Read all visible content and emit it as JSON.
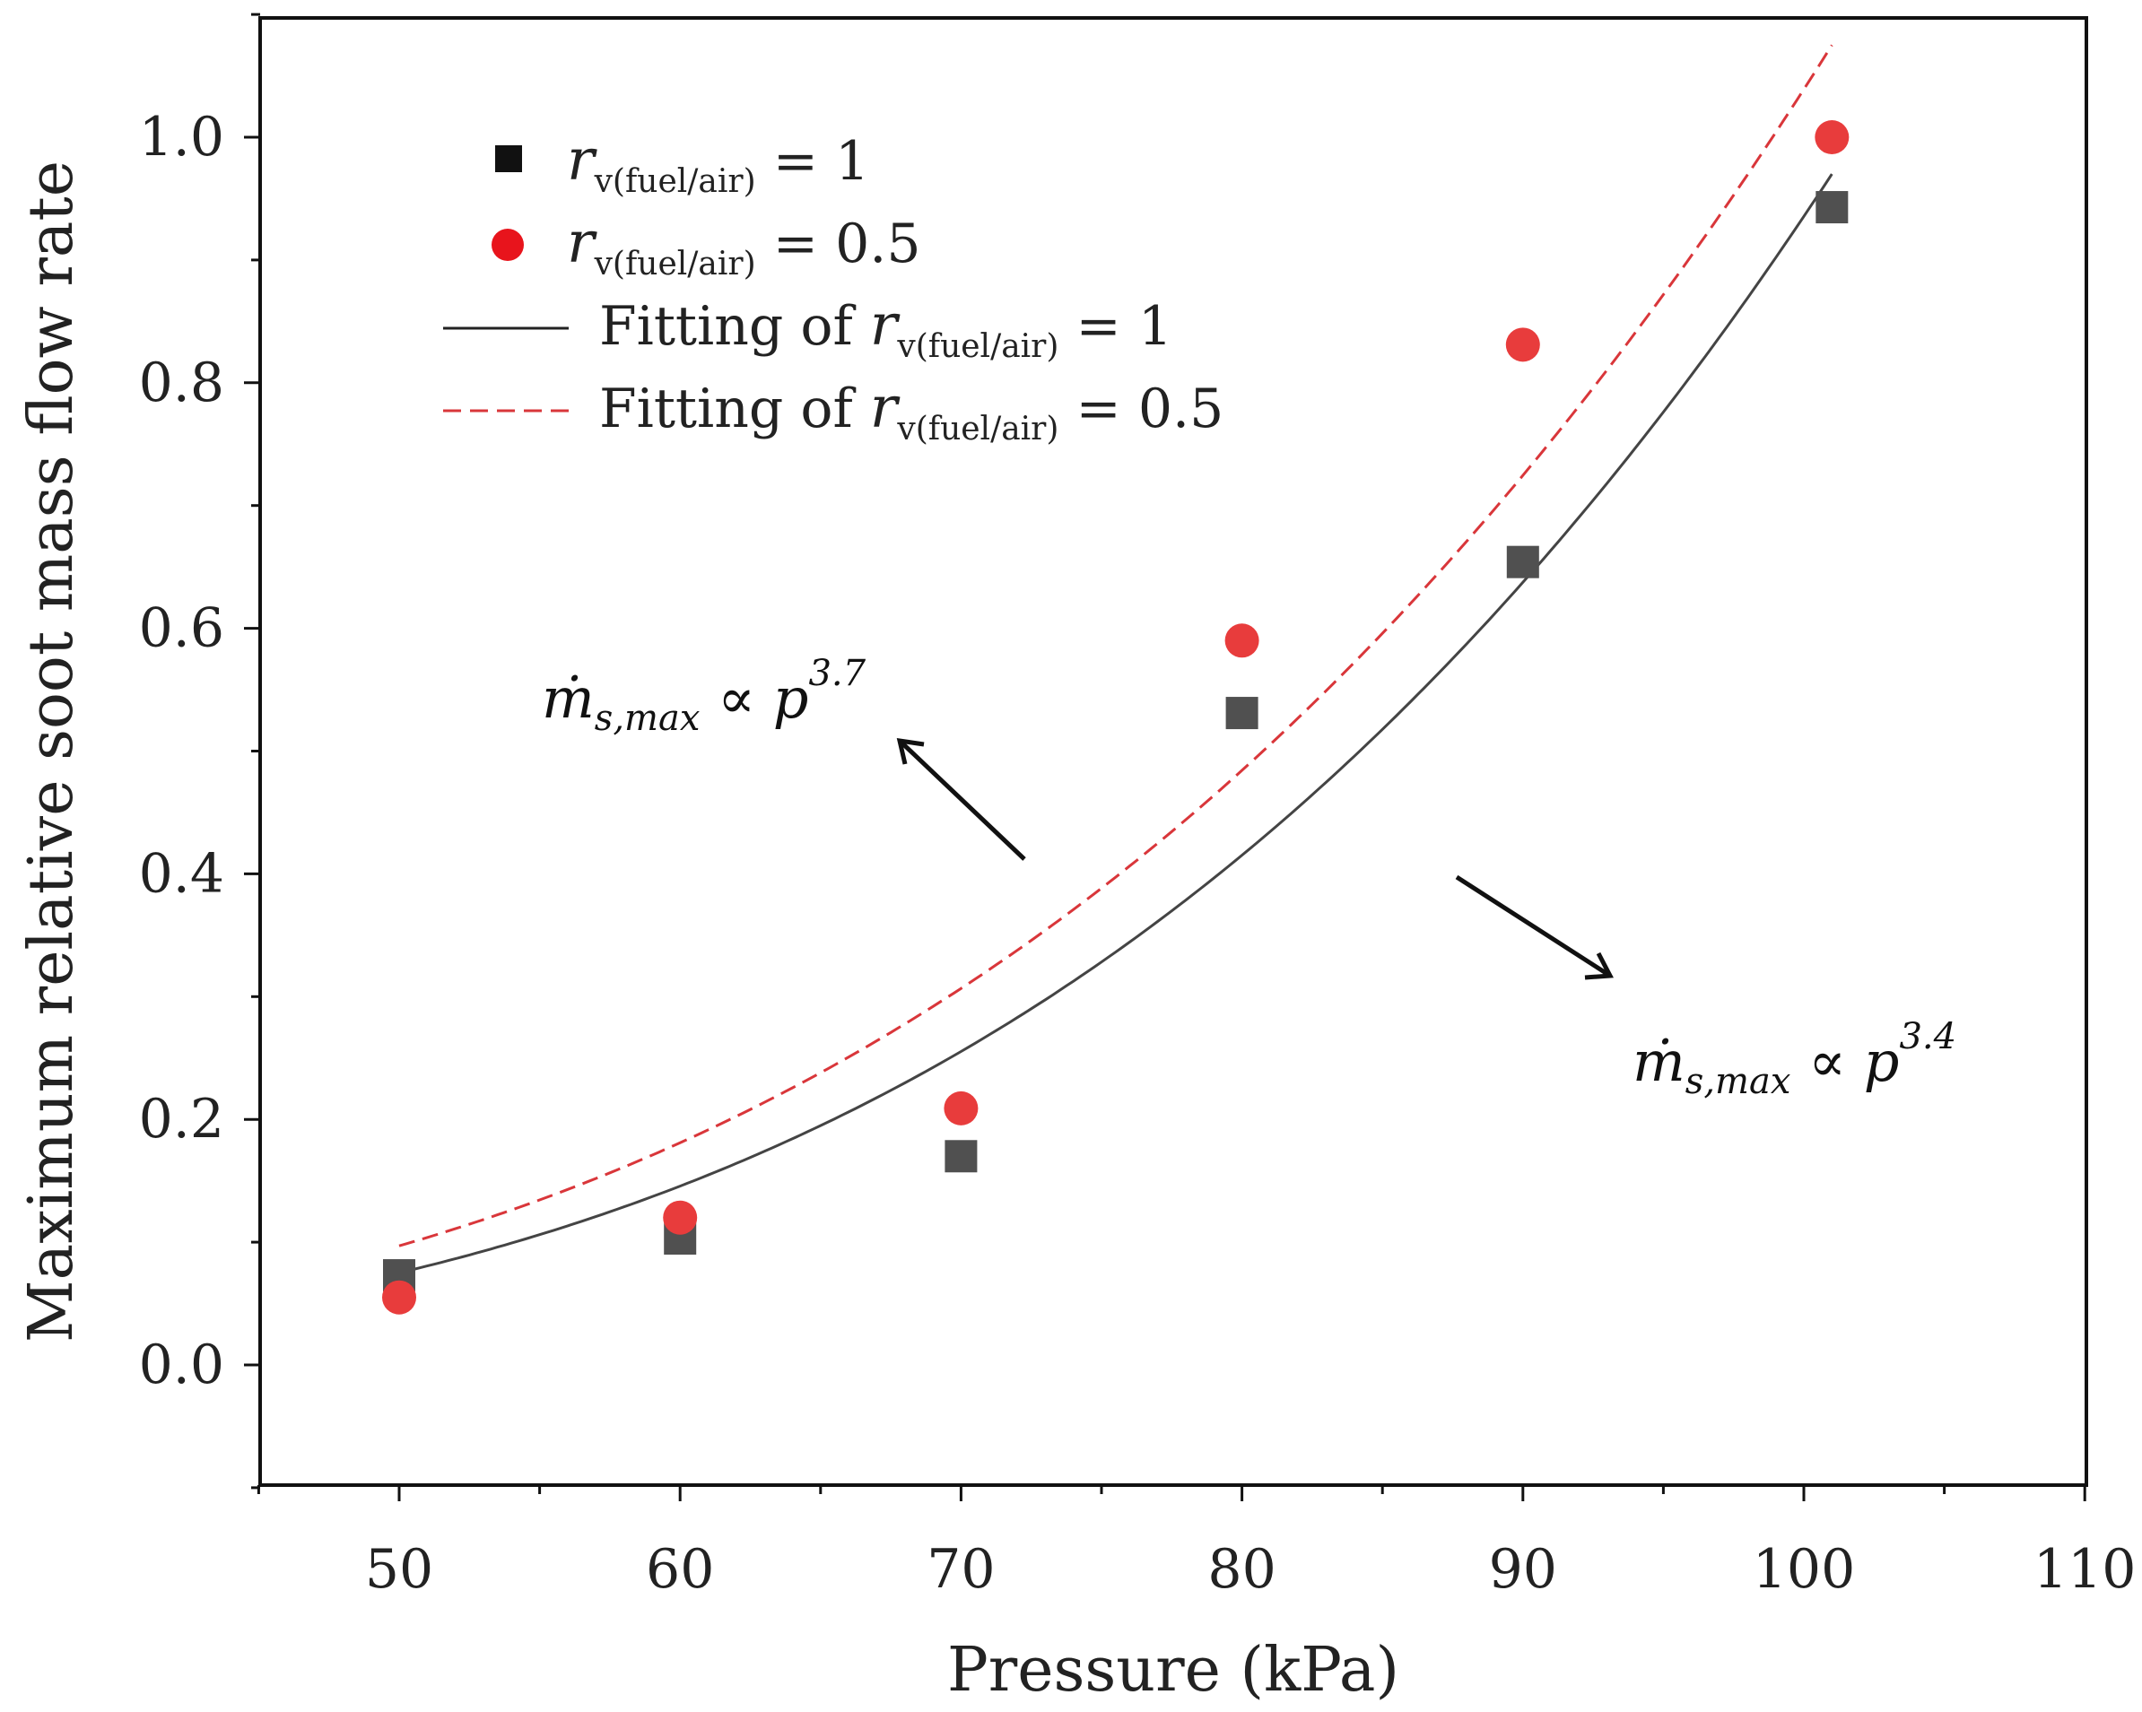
{
  "chart_data": {
    "type": "scatter",
    "xlabel": "Pressure (kPa)",
    "ylabel": "Maximum relative soot mass flow rate",
    "xlim": [
      45,
      110
    ],
    "ylim": [
      -0.1,
      1.1
    ],
    "xticks": [
      50,
      60,
      70,
      80,
      90,
      100,
      110
    ],
    "xtick_labels": [
      "50",
      "60",
      "70",
      "80",
      "90",
      "100",
      "110"
    ],
    "yticks": [
      0.0,
      0.2,
      0.4,
      0.6,
      0.8,
      1.0
    ],
    "ytick_labels": [
      "0.0",
      "0.2",
      "0.4",
      "0.6",
      "0.8",
      "1.0"
    ],
    "series": [
      {
        "name": "r_v(fuel/air) = 1",
        "marker": "square",
        "color": "#505050",
        "x": [
          50,
          60,
          70,
          80,
          90,
          101
        ],
        "y": [
          0.073,
          0.103,
          0.17,
          0.531,
          0.654,
          0.943
        ]
      },
      {
        "name": "r_v(fuel/air) = 0.5",
        "marker": "circle",
        "color": "#e83c3c",
        "x": [
          50,
          60,
          70,
          80,
          90,
          101
        ],
        "y": [
          0.055,
          0.12,
          0.209,
          0.59,
          0.831,
          1.0
        ]
      }
    ],
    "fits": [
      {
        "name": "Fitting of r_v(fuel/air) = 1",
        "style": "solid",
        "color": "#444444",
        "exponent": 3.4,
        "y_at_50": 0.075,
        "y_at_101": 0.97,
        "x_range": [
          50,
          101
        ]
      },
      {
        "name": "Fitting of r_v(fuel/air) = 0.5",
        "style": "dashed",
        "color": "#d9363a",
        "exponent": 3.7,
        "y_at_50": 0.097,
        "y_at_101": 1.075,
        "x_range": [
          50,
          101
        ]
      }
    ],
    "legend": {
      "position": "top-left",
      "entries": [
        {
          "prefix": "",
          "sym": "r",
          "sub": "v(fuel/air)",
          "suffix": " = 1"
        },
        {
          "prefix": "",
          "sym": "r",
          "sub": "v(fuel/air)",
          "suffix": " = 0.5"
        },
        {
          "prefix": "Fitting of ",
          "sym": "r",
          "sub": "v(fuel/air)",
          "suffix": " = 1"
        },
        {
          "prefix": "Fitting of ",
          "sym": "r",
          "sub": "v(fuel/air)",
          "suffix": " = 0.5"
        }
      ]
    },
    "annotations": [
      {
        "base": "ṁ",
        "sub": "s,max",
        "rel": " ∝ p",
        "sup": "3.7"
      },
      {
        "base": "ṁ",
        "sub": "s,max",
        "rel": " ∝ p",
        "sup": "3.4"
      }
    ]
  }
}
